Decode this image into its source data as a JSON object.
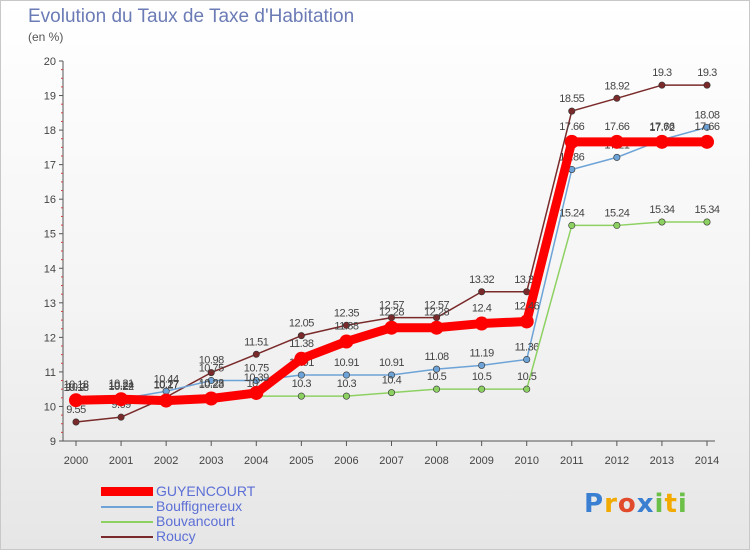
{
  "title": "Evolution du Taux de Taxe d'Habitation",
  "unit_label": "(en %)",
  "chart_data": {
    "type": "line",
    "title": "Evolution du Taux de Taxe d'Habitation",
    "ylabel": "(en %)",
    "x": [
      2000,
      2001,
      2002,
      2003,
      2004,
      2005,
      2006,
      2007,
      2008,
      2009,
      2010,
      2011,
      2012,
      2013,
      2014
    ],
    "ylim": [
      9,
      20
    ],
    "yticks": [
      9,
      10,
      11,
      12,
      13,
      14,
      15,
      16,
      17,
      18,
      19,
      20
    ],
    "grid": false,
    "legend_position": "bottom-left",
    "series": [
      {
        "name": "GUYENCOURT",
        "color": "#ff0000",
        "values": [
          10.18,
          10.21,
          10.17,
          10.23,
          10.39,
          11.38,
          11.88,
          12.28,
          12.28,
          12.4,
          12.46,
          17.66,
          17.66,
          17.66,
          17.66
        ],
        "labels": [
          "10.18",
          "10.21",
          "10.17",
          "10.23",
          "10.39",
          "11.38",
          "11.88",
          "12.28",
          "12.28",
          "12.4",
          "12.46",
          "17.66",
          "17.66",
          "17.66",
          "17.66"
        ]
      },
      {
        "name": "Bouffignereux",
        "color": "#6da3d6",
        "values": [
          10.18,
          10.22,
          10.44,
          10.75,
          10.75,
          10.91,
          10.91,
          10.91,
          11.08,
          11.19,
          11.36,
          16.86,
          17.21,
          17.72,
          18.08
        ],
        "labels": [
          "10.18",
          "10.22",
          "10.44",
          "10.75",
          "10.75",
          "10.91",
          "10.91",
          "10.91",
          "11.08",
          "11.19",
          "11.36",
          "16.86",
          "17.21",
          "17.72",
          "18.08"
        ]
      },
      {
        "name": "Bouvancourt",
        "color": "#8ed163",
        "values": [
          10.2,
          10.24,
          10.27,
          10.28,
          10.3,
          10.3,
          10.3,
          10.4,
          10.5,
          10.5,
          10.5,
          15.24,
          15.24,
          15.34,
          15.34
        ],
        "labels": [
          "10.2",
          "10.24",
          "10.27",
          "10.28",
          "10.3",
          "10.3",
          "10.3",
          "10.4",
          "10.5",
          "10.5",
          "10.5",
          "15.24",
          "15.24",
          "15.34",
          "15.34"
        ]
      },
      {
        "name": "Roucy",
        "color": "#7a2a2a",
        "values": [
          9.55,
          9.69,
          10.27,
          10.98,
          11.51,
          12.05,
          12.35,
          12.57,
          12.57,
          13.32,
          13.32,
          18.55,
          18.92,
          19.3,
          19.3
        ],
        "labels": [
          "9.55",
          "9.69",
          "10.27",
          "10.98",
          "11.51",
          "12.05",
          "12.35",
          "12.57",
          "12.57",
          "13.32",
          "13.32",
          "18.55",
          "18.92",
          "19.3",
          "19.3"
        ]
      }
    ]
  },
  "legend": [
    {
      "label": "GUYENCOURT",
      "color": "#ff0000"
    },
    {
      "label": "Bouffignereux",
      "color": "#6da3d6"
    },
    {
      "label": "Bouvancourt",
      "color": "#8ed163"
    },
    {
      "label": "Roucy",
      "color": "#7a2a2a"
    }
  ],
  "logo": {
    "letters": [
      "P",
      "r",
      "o",
      "x",
      "i",
      "t",
      "i"
    ],
    "colors": [
      "#3a7fd1",
      "#f2a900",
      "#e24a2c",
      "#3a7fd1",
      "#6cc04a",
      "#f2a900",
      "#6cc04a"
    ]
  }
}
